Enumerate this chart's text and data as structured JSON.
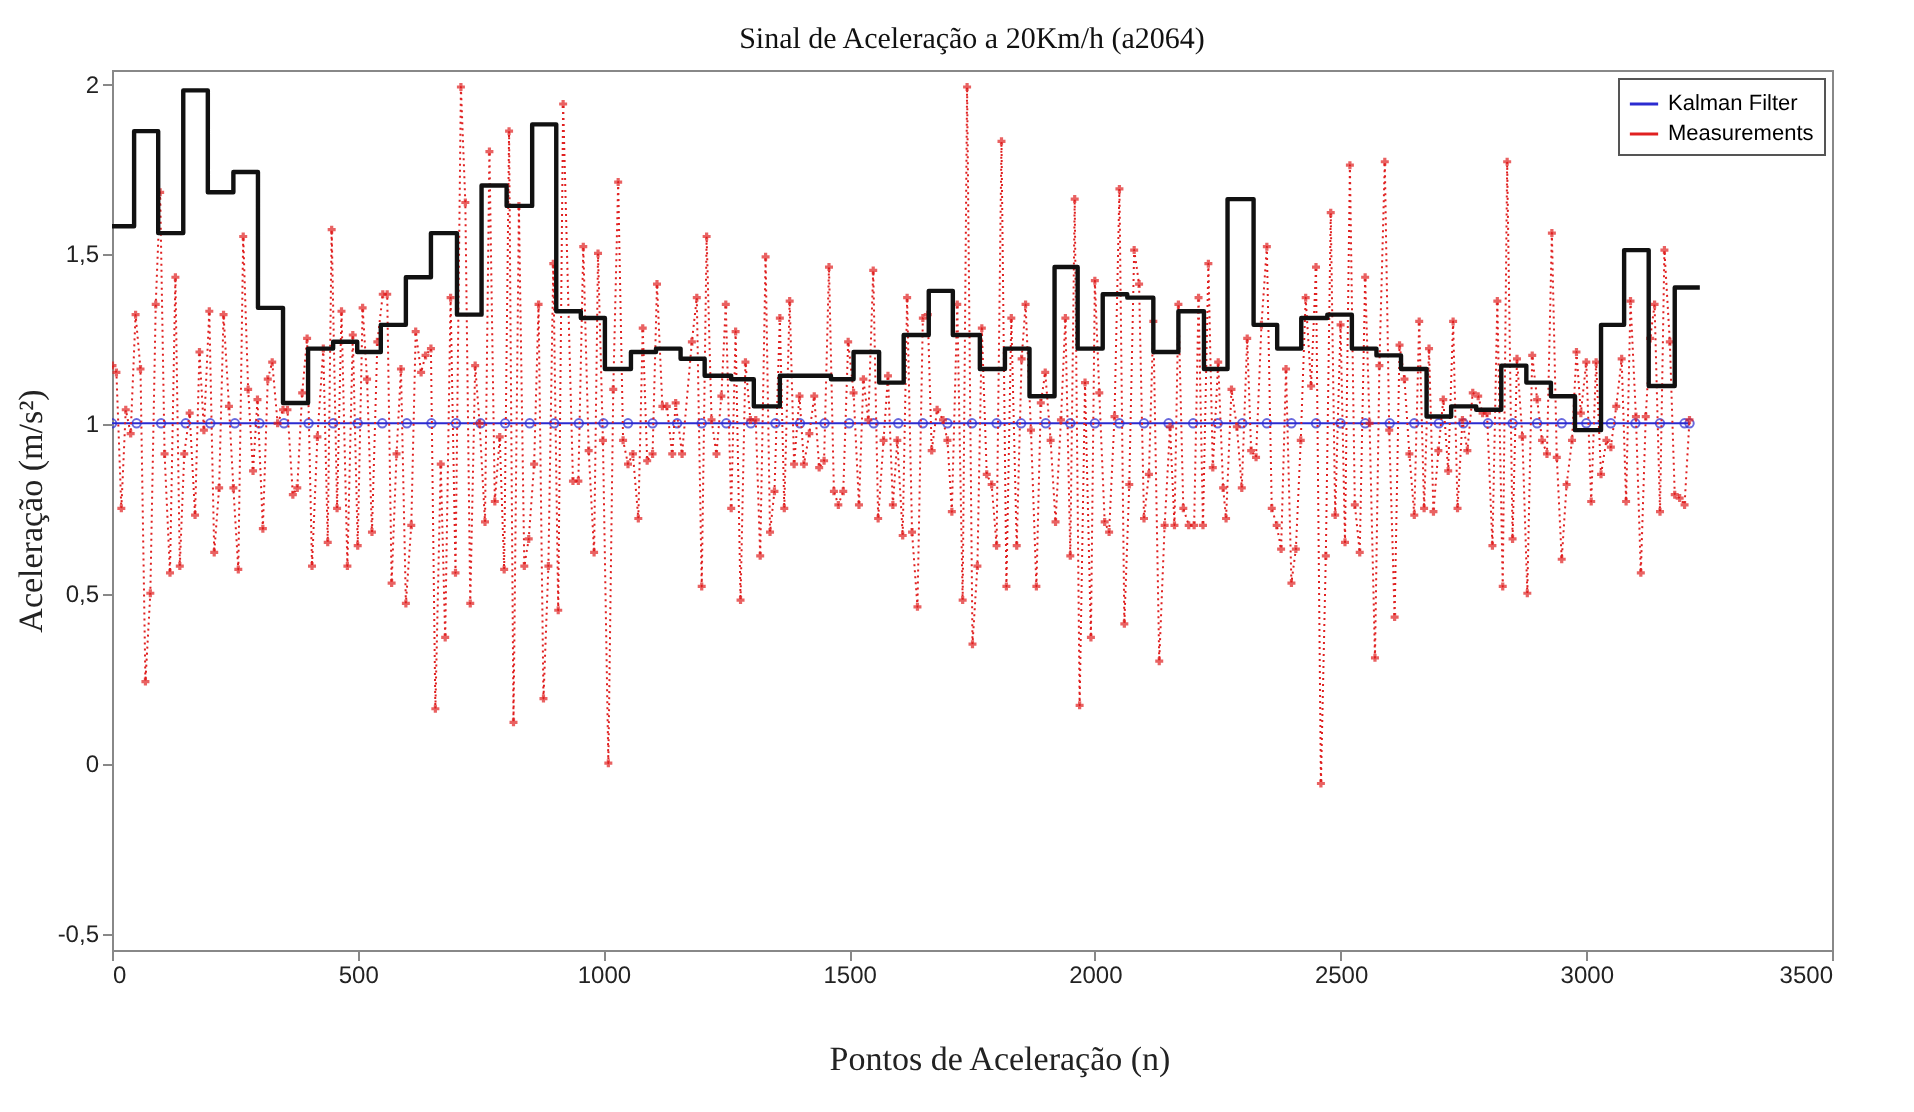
{
  "chart_data": {
    "type": "line",
    "title": "Sinal de Aceleração a 20Km/h (a2064)",
    "xlabel": "Pontos de Aceleração (n)",
    "ylabel": "Aceleração (m/s²)",
    "xlim": [
      0,
      3500
    ],
    "xticks": [
      0,
      500,
      1000,
      1500,
      2000,
      2500,
      3000,
      3500
    ],
    "ylim": [
      -0.55,
      2.04
    ],
    "yticks": [
      {
        "value": -0.5,
        "label": "-0,5"
      },
      0,
      {
        "value": 0.5,
        "label": "0,5"
      },
      1,
      {
        "value": 1.5,
        "label": "1,5"
      },
      2
    ],
    "grid": false,
    "legend": "top right",
    "series": [
      {
        "name": "Kalman Filter",
        "color": "#2b2bd0",
        "marker": "circle",
        "line_style": "solid",
        "x": [
          0,
          50,
          100,
          150,
          200,
          250,
          300,
          350,
          400,
          450,
          500,
          550,
          600,
          650,
          700,
          750,
          800,
          850,
          900,
          950,
          1000,
          1050,
          1100,
          1150,
          1200,
          1250,
          1300,
          1350,
          1400,
          1450,
          1500,
          1550,
          1600,
          1650,
          1700,
          1750,
          1800,
          1850,
          1900,
          1950,
          2000,
          2050,
          2100,
          2150,
          2200,
          2250,
          2300,
          2350,
          2400,
          2450,
          2500,
          2550,
          2600,
          2650,
          2700,
          2750,
          2800,
          2850,
          2900,
          2950,
          3000,
          3050,
          3100,
          3150,
          3200,
          3210
        ],
        "values": [
          1,
          1,
          1,
          1,
          1,
          1,
          1,
          1,
          1,
          1,
          1,
          1,
          1,
          1,
          1,
          1,
          1,
          1,
          1,
          1,
          1,
          1,
          1,
          1,
          1,
          1,
          1,
          1,
          1,
          1,
          1,
          1,
          1,
          1,
          1,
          1,
          1,
          1,
          1,
          1,
          1,
          1,
          1,
          1,
          1,
          1,
          1,
          1,
          1,
          1,
          1,
          1,
          1,
          1,
          1,
          1,
          1,
          1,
          1,
          1,
          1,
          1,
          1,
          1,
          1,
          1
        ]
      },
      {
        "name": "Measurements",
        "color": "#e02020",
        "marker": "cross",
        "line_style": "dotted",
        "x": [
          1,
          9,
          19,
          28,
          38,
          48,
          58,
          68,
          78,
          89,
          98,
          107,
          118,
          129,
          138,
          147,
          158,
          169,
          178,
          187,
          198,
          208,
          218,
          227,
          238,
          247,
          257,
          267,
          277,
          287,
          296,
          307,
          317,
          326,
          337,
          348,
          357,
          368,
          377,
          387,
          397,
          407,
          418,
          430,
          439,
          447,
          458,
          467,
          479,
          490,
          500,
          510,
          519,
          529,
          540,
          551,
          560,
          569,
          579,
          588,
          598,
          609,
          618,
          629,
          638,
          649,
          658,
          669,
          678,
          689,
          699,
          710,
          719,
          729,
          739,
          748,
          759,
          768,
          779,
          789,
          798,
          808,
          817,
          828,
          839,
          848,
          859,
          868,
          878,
          888,
          898,
          908,
          918,
          938,
          949,
          959,
          970,
          981,
          989,
          999,
          1010,
          1020,
          1030,
          1040,
          1050,
          1060,
          1071,
          1080,
          1089,
          1100,
          1109,
          1120,
          1129,
          1140,
          1147,
          1160,
          1180,
          1190,
          1200,
          1210,
          1220,
          1230,
          1240,
          1249,
          1260,
          1269,
          1279,
          1289,
          1299,
          1310,
          1319,
          1330,
          1339,
          1348,
          1359,
          1368,
          1379,
          1388,
          1399,
          1408,
          1419,
          1429,
          1439,
          1449,
          1459,
          1469,
          1478,
          1488,
          1498,
          1509,
          1520,
          1529,
          1539,
          1549,
          1559,
          1570,
          1579,
          1589,
          1598,
          1609,
          1618,
          1628,
          1639,
          1650,
          1660,
          1668,
          1679,
          1691,
          1700,
          1709,
          1720,
          1731,
          1740,
          1751,
          1761,
          1770,
          1780,
          1790,
          1800,
          1810,
          1820,
          1830,
          1841,
          1851,
          1859,
          1870,
          1881,
          1890,
          1899,
          1910,
          1920,
          1931,
          1940,
          1950,
          1959,
          1969,
          1980,
          1992,
          2000,
          2009,
          2020,
          2029,
          2040,
          2050,
          2060,
          2070,
          2080,
          2090,
          2100,
          2110,
          2119,
          2131,
          2142,
          2153,
          2162,
          2170,
          2180,
          2191,
          2202,
          2211,
          2220,
          2231,
          2240,
          2251,
          2261,
          2267,
          2278,
          2289,
          2299,
          2310,
          2318,
          2328,
          2339,
          2350,
          2360,
          2370,
          2379,
          2389,
          2400,
          2409,
          2419,
          2429,
          2440,
          2450,
          2460,
          2470,
          2480,
          2489,
          2500,
          2509,
          2519,
          2529,
          2539,
          2550,
          2559,
          2570,
          2579,
          2590,
          2599,
          2610,
          2620,
          2630,
          2640,
          2650,
          2660,
          2670,
          2680,
          2689,
          2699,
          2709,
          2719,
          2729,
          2738,
          2748,
          2758,
          2769,
          2780,
          2789,
          2798,
          2809,
          2819,
          2830,
          2839,
          2850,
          2859,
          2870,
          2880,
          2890,
          2900,
          2910,
          2920,
          2930,
          2940,
          2950,
          2960,
          2971,
          2980,
          2989,
          3000,
          3010,
          3020,
          3030,
          3041,
          3050,
          3061,
          3072,
          3081,
          3090,
          3101,
          3111,
          3121,
          3130,
          3139,
          3150,
          3159,
          3170,
          3180,
          3190,
          3200,
          3210
        ],
        "values": [
          1.17,
          1.15,
          0.75,
          1.04,
          0.97,
          1.32,
          1.16,
          0.24,
          0.5,
          1.35,
          1.68,
          0.91,
          0.56,
          1.43,
          0.58,
          0.91,
          1.03,
          0.73,
          1.21,
          0.98,
          1.33,
          0.62,
          0.81,
          1.32,
          1.05,
          0.81,
          0.57,
          1.55,
          1.1,
          0.86,
          1.07,
          0.69,
          1.13,
          1.18,
          1.0,
          1.04,
          1.04,
          0.79,
          0.81,
          1.09,
          1.25,
          0.58,
          0.96,
          1.22,
          0.65,
          1.57,
          0.75,
          1.33,
          0.58,
          1.26,
          0.64,
          1.34,
          1.13,
          0.68,
          1.24,
          1.38,
          1.38,
          0.53,
          0.91,
          1.16,
          0.47,
          0.7,
          1.27,
          1.15,
          1.2,
          1.22,
          0.16,
          0.88,
          0.37,
          1.37,
          0.56,
          1.99,
          1.65,
          0.47,
          1.17,
          1.0,
          0.71,
          1.8,
          0.77,
          0.96,
          0.57,
          1.86,
          0.12,
          1.64,
          0.58,
          0.66,
          0.88,
          1.35,
          0.19,
          0.58,
          1.47,
          0.45,
          1.94,
          0.83,
          0.83,
          1.52,
          0.92,
          0.62,
          1.5,
          0.95,
          0.0,
          1.1,
          1.71,
          0.95,
          0.88,
          0.91,
          0.72,
          1.28,
          0.89,
          0.91,
          1.41,
          1.05,
          1.05,
          0.91,
          1.06,
          0.91,
          1.24,
          1.37,
          0.52,
          1.55,
          1.01,
          0.91,
          1.08,
          1.35,
          0.75,
          1.27,
          0.48,
          1.18,
          1.01,
          1.01,
          0.61,
          1.49,
          0.68,
          0.8,
          1.31,
          0.75,
          1.36,
          0.88,
          1.08,
          0.88,
          0.97,
          1.08,
          0.87,
          0.89,
          1.46,
          0.8,
          0.76,
          0.8,
          1.24,
          1.09,
          0.76,
          1.13,
          1.01,
          1.45,
          0.72,
          0.95,
          1.14,
          0.76,
          0.95,
          0.67,
          1.37,
          0.68,
          0.46,
          1.31,
          1.32,
          0.92,
          1.04,
          1.01,
          0.95,
          0.74,
          1.35,
          0.48,
          1.99,
          0.35,
          0.58,
          1.28,
          0.85,
          0.82,
          0.64,
          1.83,
          0.52,
          1.31,
          0.64,
          1.19,
          1.35,
          0.98,
          0.52,
          1.06,
          1.15,
          0.95,
          0.71,
          1.01,
          1.31,
          0.61,
          1.66,
          0.17,
          1.12,
          0.37,
          1.42,
          1.09,
          0.71,
          0.68,
          1.02,
          1.69,
          0.41,
          0.82,
          1.51,
          1.41,
          0.72,
          0.85,
          1.3,
          0.3,
          0.7,
          0.99,
          0.7,
          1.35,
          0.75,
          0.7,
          0.7,
          1.37,
          0.7,
          1.47,
          0.87,
          1.18,
          0.81,
          0.72,
          1.1,
          0.99,
          0.81,
          1.25,
          0.92,
          0.9,
          1.29,
          1.52,
          0.75,
          0.7,
          0.63,
          1.16,
          0.53,
          0.63,
          0.95,
          1.37,
          1.11,
          1.46,
          -0.06,
          0.61,
          1.62,
          0.73,
          1.29,
          0.65,
          1.76,
          0.76,
          0.62,
          1.43,
          1.0,
          0.31,
          1.17,
          1.77,
          0.98,
          0.43,
          1.23,
          1.13,
          0.91,
          0.73,
          1.3,
          0.75,
          1.22,
          0.74,
          0.92,
          1.07,
          0.86,
          1.3,
          0.75,
          1.01,
          0.92,
          1.09,
          1.08,
          1.03,
          1.03,
          0.64,
          1.36,
          0.52,
          1.77,
          0.66,
          1.19,
          0.96,
          0.5,
          1.2,
          1.07,
          0.95,
          0.91,
          1.56,
          0.9,
          0.6,
          0.82,
          0.95,
          1.21,
          1.03,
          1.18,
          0.77,
          1.18,
          0.85,
          0.95,
          0.93,
          1.05,
          1.19,
          0.77,
          1.36,
          1.02,
          0.56,
          1.02,
          1.25,
          1.35,
          0.74,
          1.51,
          1.24,
          0.79,
          0.78,
          0.76,
          1.01
        ]
      },
      {
        "type": "step",
        "color": "#111111",
        "marker": "none",
        "line_style": "solid",
        "x": [
          0,
          45,
          94,
          145,
          195,
          247,
          297,
          348,
          399,
          450,
          499,
          547,
          598,
          649,
          702,
          752,
          803,
          855,
          904,
          954,
          1003,
          1056,
          1107,
          1157,
          1206,
          1260,
          1306,
          1359,
          1412,
          1463,
          1509,
          1561,
          1611,
          1662,
          1711,
          1766,
          1817,
          1867,
          1918,
          1965,
          2016,
          2066,
          2119,
          2170,
          2222,
          2270,
          2323,
          2371,
          2420,
          2473,
          2523,
          2573,
          2623,
          2675,
          2725,
          2776,
          2827,
          2878,
          2928,
          2977,
          3030,
          3077,
          3127,
          3180,
          3231
        ],
        "values": [
          1.58,
          1.86,
          1.56,
          1.98,
          1.68,
          1.74,
          1.34,
          1.06,
          1.22,
          1.24,
          1.21,
          1.29,
          1.43,
          1.56,
          1.32,
          1.7,
          1.64,
          1.88,
          1.33,
          1.31,
          1.16,
          1.21,
          1.22,
          1.19,
          1.14,
          1.13,
          1.05,
          1.14,
          1.14,
          1.13,
          1.21,
          1.12,
          1.26,
          1.39,
          1.26,
          1.16,
          1.22,
          1.08,
          1.46,
          1.22,
          1.38,
          1.37,
          1.21,
          1.33,
          1.16,
          1.66,
          1.29,
          1.22,
          1.31,
          1.32,
          1.22,
          1.2,
          1.16,
          1.02,
          1.05,
          1.04,
          1.17,
          1.12,
          1.08,
          0.98,
          1.29,
          1.51,
          1.11,
          1.4,
          1.4
        ]
      }
    ]
  }
}
